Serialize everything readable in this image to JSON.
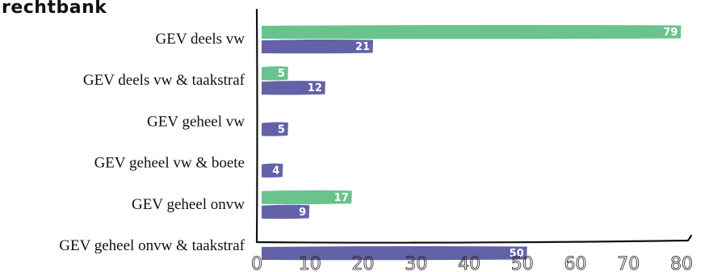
{
  "chart_data": {
    "type": "bar",
    "orientation": "horizontal",
    "title": "rechtbank",
    "categories": [
      "GEV deels vw",
      "GEV deels vw & taakstraf",
      "GEV geheel vw",
      "GEV geheel vw & boete",
      "GEV geheel onvw",
      "GEV geheel onvw & taakstraf"
    ],
    "series": [
      {
        "color": "#6ac38d",
        "values": [
          79,
          5,
          null,
          null,
          17,
          null
        ]
      },
      {
        "color": "#6362a8",
        "values": [
          21,
          12,
          5,
          4,
          9,
          50
        ]
      }
    ],
    "xlim": [
      0,
      80
    ],
    "xticks": [
      0,
      10,
      20,
      30,
      40,
      50,
      60,
      70,
      80
    ],
    "grid": false,
    "legend": "none"
  }
}
